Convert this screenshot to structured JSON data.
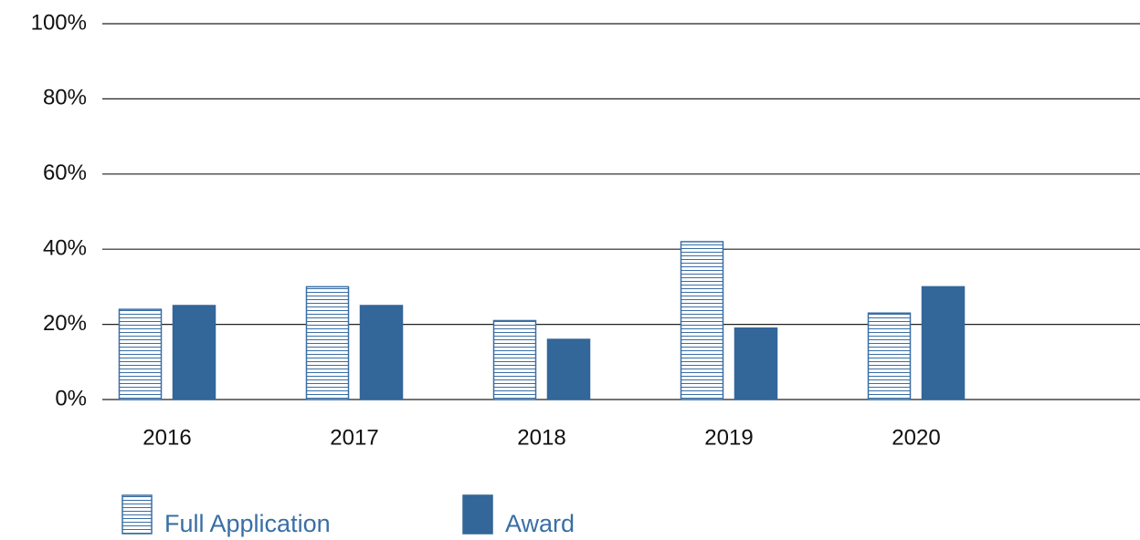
{
  "chart_data": {
    "type": "bar",
    "categories": [
      "2016",
      "2017",
      "2018",
      "2019",
      "2020"
    ],
    "series": [
      {
        "name": "Full Application",
        "color": "#3a6ea5",
        "hatch": "horizontal",
        "values": [
          24,
          30,
          21,
          42,
          23
        ]
      },
      {
        "name": "Award",
        "color": "#336699",
        "values": [
          25,
          25,
          16,
          19,
          30
        ]
      }
    ],
    "ylim": [
      0,
      100
    ],
    "yticks": [
      {
        "value": 0,
        "label": "0%"
      },
      {
        "value": 20,
        "label": "20%"
      },
      {
        "value": 40,
        "label": "40%"
      },
      {
        "value": 60,
        "label": "60%"
      },
      {
        "value": 80,
        "label": "80%"
      },
      {
        "value": 100,
        "label": "100%"
      }
    ],
    "grid": true,
    "legend": "bottom"
  }
}
